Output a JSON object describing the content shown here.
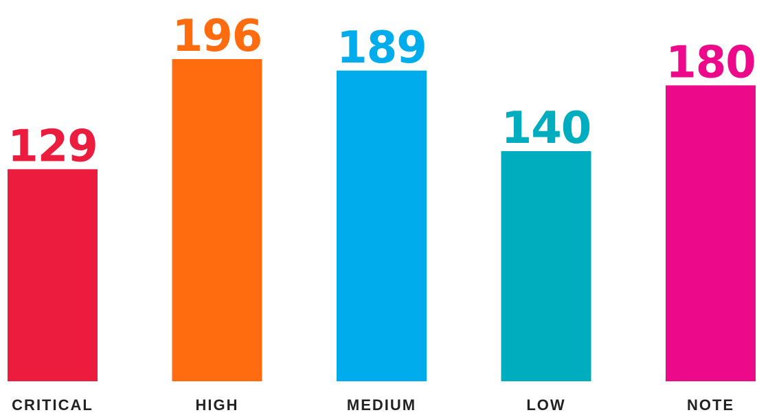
{
  "chart_data": {
    "type": "bar",
    "categories": [
      "CRITICAL",
      "HIGH",
      "MEDIUM",
      "LOW",
      "NOTE"
    ],
    "values": [
      129,
      196,
      189,
      140,
      180
    ],
    "colors": [
      "#EC1C3E",
      "#FF6B0F",
      "#00ACEC",
      "#00ADBE",
      "#EC0A8B"
    ],
    "title": "",
    "xlabel": "",
    "ylabel": "",
    "ylim": [
      0,
      196
    ],
    "grid": false,
    "legend": "none",
    "data_labels": true
  }
}
